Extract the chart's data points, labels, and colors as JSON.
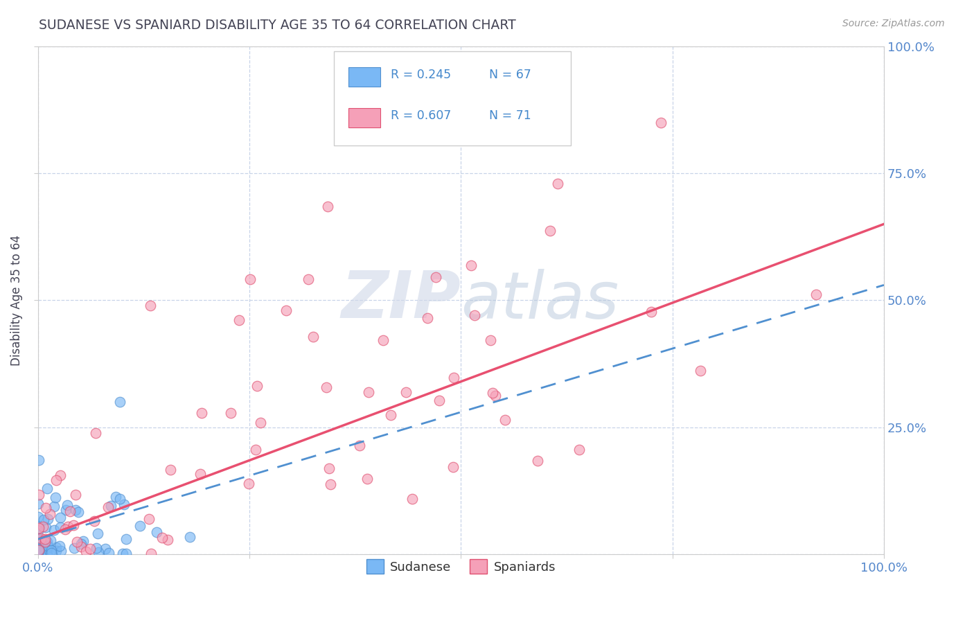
{
  "title": "SUDANESE VS SPANIARD DISABILITY AGE 35 TO 64 CORRELATION CHART",
  "source": "Source: ZipAtlas.com",
  "ylabel": "Disability Age 35 to 64",
  "sudanese_R": 0.245,
  "sudanese_N": 67,
  "spaniard_R": 0.607,
  "spaniard_N": 71,
  "sudanese_color": "#7ab8f5",
  "spaniard_color": "#f5a0b8",
  "sudanese_edge_color": "#5090d0",
  "spaniard_edge_color": "#e05070",
  "sudanese_line_color": "#5090d0",
  "spaniard_line_color": "#e85070",
  "background_color": "#ffffff",
  "grid_color": "#c8d4e8",
  "title_color": "#444455",
  "axis_tick_color": "#5588cc",
  "legend_text_color": "#4488cc",
  "watermark_color": "#d0d8e8",
  "source_color": "#999999"
}
